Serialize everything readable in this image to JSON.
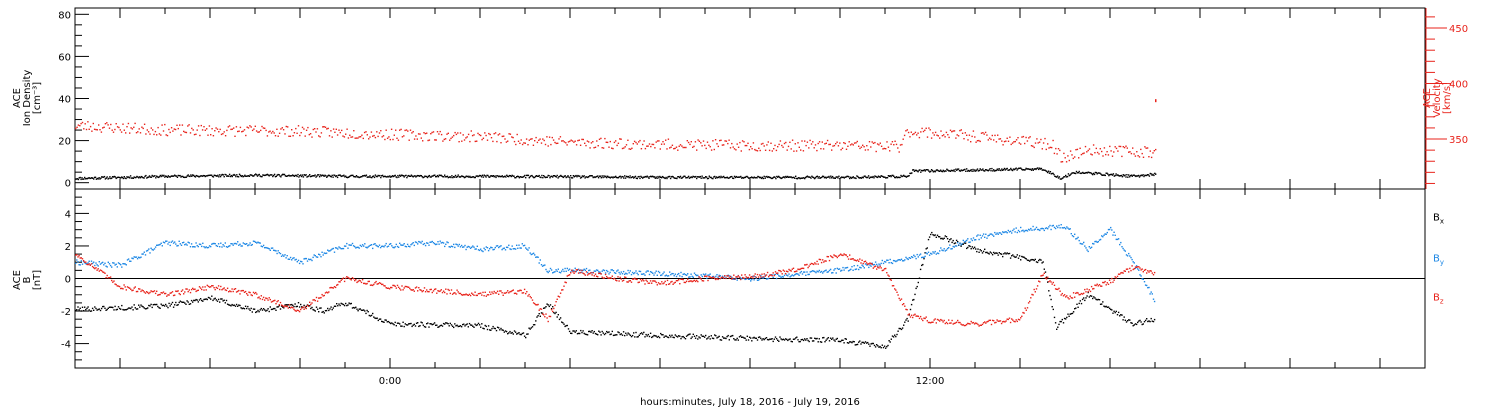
{
  "xaxis": {
    "label": "hours:minutes, July 18, 2016 - July 19, 2016",
    "ticks": [
      {
        "hours": 0,
        "label": "0:00"
      },
      {
        "hours": 12,
        "label": "12:00"
      }
    ],
    "range_hours": [
      -7,
      23
    ]
  },
  "colors": {
    "black": "#000000",
    "red": "#e8231b",
    "blue": "#1e88e5"
  },
  "chart_data": [
    {
      "type": "scatter",
      "panel": "top",
      "left_axis": {
        "label_lines": [
          "ACE",
          "Ion Density",
          "[cm⁻³]"
        ],
        "range": [
          -3,
          83
        ],
        "ticks": [
          0,
          20,
          40,
          60,
          80
        ],
        "tick_labels": [
          "0",
          "20",
          "40",
          "60",
          "80"
        ]
      },
      "right_axis": {
        "label_lines": [
          "ACE",
          "Velocity",
          "[km/s]"
        ],
        "range": [
          305,
          468
        ],
        "ticks": [
          350,
          400,
          450
        ],
        "tick_labels": [
          "350",
          "400",
          "450"
        ],
        "color": "#e8231b"
      },
      "series": [
        {
          "color": "#000000",
          "axis": "left",
          "x": [
            -7,
            -5,
            -3,
            -1,
            0,
            2,
            4,
            6,
            8,
            10,
            11.5,
            11.6,
            13,
            14.5,
            14.9,
            15.2,
            16.5,
            17
          ],
          "y": [
            2,
            3,
            3.5,
            3,
            3,
            3,
            2.8,
            2.5,
            2.5,
            2.5,
            3,
            5.5,
            6,
            6.5,
            2,
            5,
            3,
            4
          ]
        },
        {
          "color": "#e8231b",
          "axis": "right",
          "x": [
            -7,
            -5,
            -2,
            0,
            2,
            4,
            6,
            8,
            10,
            11.3,
            11.5,
            12.5,
            14,
            14.7,
            14.9,
            15.5,
            16.5,
            17
          ],
          "y": [
            362,
            358,
            357,
            354,
            352,
            347,
            345,
            344,
            344,
            343,
            357,
            354,
            348,
            345,
            333,
            340,
            339,
            338
          ]
        }
      ],
      "annotations": [
        {
          "x": 17,
          "y": 385,
          "axis": "right",
          "color": "#e8231b"
        }
      ]
    },
    {
      "type": "scatter",
      "panel": "bottom",
      "left_axis": {
        "label_lines": [
          "ACE",
          "B",
          "[nT]"
        ],
        "range": [
          -5.5,
          5.5
        ],
        "ticks": [
          -4,
          -2,
          0,
          2,
          4
        ],
        "tick_labels": [
          "-4",
          "-2",
          "0",
          "2",
          "4"
        ],
        "zero_line": true
      },
      "series": [
        {
          "name": "Bx",
          "color": "#000000",
          "x": [
            -7,
            -5,
            -4,
            -3,
            -2,
            -1.5,
            -1,
            0,
            2,
            3,
            3.5,
            4,
            6,
            8,
            10,
            11,
            11.5,
            12,
            13,
            14.5,
            14.8,
            15.5,
            16.5,
            17
          ],
          "y": [
            -1.9,
            -1.7,
            -1.2,
            -2.0,
            -1.6,
            -2.0,
            -1.5,
            -2.8,
            -2.9,
            -3.5,
            -1.5,
            -3.3,
            -3.5,
            -3.7,
            -3.8,
            -4.2,
            -2.5,
            2.8,
            1.8,
            1.0,
            -3.0,
            -1.0,
            -2.8,
            -2.5
          ]
        },
        {
          "name": "By",
          "color": "#1e88e5",
          "x": [
            -7,
            -6,
            -5,
            -4,
            -3,
            -2,
            -1,
            0,
            1,
            2,
            3,
            3.5,
            4,
            6,
            8,
            10,
            11,
            12,
            13,
            14,
            15,
            15.5,
            16,
            16.5,
            17
          ],
          "y": [
            1.0,
            0.8,
            2.2,
            2.0,
            2.2,
            1.0,
            2.0,
            2.0,
            2.2,
            1.8,
            2.0,
            0.5,
            0.5,
            0.3,
            0.0,
            0.5,
            1.0,
            1.5,
            2.5,
            3.0,
            3.2,
            1.8,
            3.0,
            1.0,
            -1.4
          ]
        },
        {
          "name": "Bz",
          "color": "#e8231b",
          "x": [
            -7,
            -6,
            -5,
            -4,
            -3,
            -2,
            -1,
            0,
            2,
            3,
            3.5,
            4,
            5,
            6,
            7,
            8,
            9,
            10,
            10.5,
            11,
            11.5,
            12,
            13,
            14,
            14.5,
            15,
            16,
            16.5,
            17
          ],
          "y": [
            1.5,
            -0.5,
            -1.0,
            -0.5,
            -1.0,
            -2.0,
            0.0,
            -0.5,
            -1.0,
            -0.8,
            -2.5,
            0.5,
            0.0,
            -0.3,
            0.0,
            0.1,
            0.5,
            1.5,
            1.0,
            0.5,
            -2.2,
            -2.6,
            -2.8,
            -2.5,
            0.3,
            -1.2,
            -0.2,
            0.7,
            0.3
          ]
        }
      ],
      "legend": [
        {
          "text": "B",
          "sub": "x",
          "color": "#000000",
          "y": 3.8
        },
        {
          "text": "B",
          "sub": "y",
          "color": "#1e88e5",
          "y": 1.3
        },
        {
          "text": "B",
          "sub": "z",
          "color": "#e8231b",
          "y": -1.1
        }
      ]
    }
  ]
}
